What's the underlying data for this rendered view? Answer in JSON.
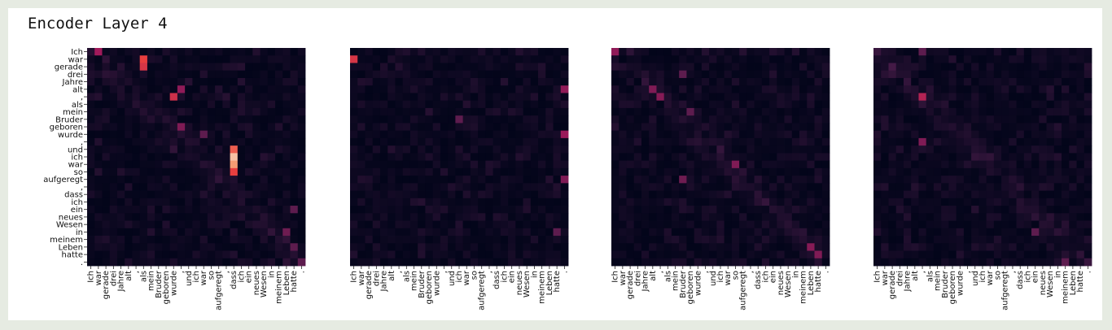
{
  "figure": {
    "title": "Encoder Layer 4",
    "colors": {
      "low": "#03051a",
      "mid1": "#4c1d4b",
      "mid2": "#a11a5b",
      "high1": "#e83f3f",
      "high2": "#f69c73",
      "max": "#faebdd",
      "frame_bg": "#e6ebe2"
    }
  },
  "chart_data": [
    {
      "type": "heatmap",
      "title": "",
      "xlabel": "",
      "ylabel": "",
      "row_labels": [
        "Ich",
        "war",
        "gerade",
        "drei",
        "Jahre",
        "alt",
        ",",
        "als",
        "mein",
        "Bruder",
        "geboren",
        "wurde",
        ",",
        "und",
        "ich",
        "war",
        "so",
        "aufgeregt",
        ",",
        "dass",
        "ich",
        "ein",
        "neues",
        "Wesen",
        "in",
        "meinem",
        "Leben",
        "hatte",
        "."
      ],
      "col_labels": [
        "Ich",
        "war",
        "gerade",
        "drei",
        "Jahre",
        "alt",
        ",",
        "als",
        "mein",
        "Bruder",
        "geboren",
        "wurde",
        ",",
        "und",
        "ich",
        "war",
        "so",
        "aufgeregt",
        ",",
        "dass",
        "ich",
        "ein",
        "neues",
        "Wesen",
        "in",
        "meinem",
        "Leben",
        "hatte",
        "."
      ],
      "value_range": [
        0,
        1
      ],
      "show_y_tick_labels": true,
      "highlights": [
        {
          "row": 0,
          "col": 1,
          "value": 0.5
        },
        {
          "row": 1,
          "col": 7,
          "value": 0.7
        },
        {
          "row": 2,
          "col": 7,
          "value": 0.65
        },
        {
          "row": 5,
          "col": 12,
          "value": 0.45
        },
        {
          "row": 6,
          "col": 11,
          "value": 0.62
        },
        {
          "row": 10,
          "col": 12,
          "value": 0.4
        },
        {
          "row": 11,
          "col": 15,
          "value": 0.3
        },
        {
          "row": 13,
          "col": 19,
          "value": 0.75
        },
        {
          "row": 14,
          "col": 19,
          "value": 0.92
        },
        {
          "row": 15,
          "col": 19,
          "value": 0.85
        },
        {
          "row": 16,
          "col": 19,
          "value": 0.7
        },
        {
          "row": 21,
          "col": 27,
          "value": 0.3
        },
        {
          "row": 24,
          "col": 26,
          "value": 0.35
        },
        {
          "row": 26,
          "col": 27,
          "value": 0.3
        },
        {
          "row": 28,
          "col": 28,
          "value": 0.3
        }
      ]
    },
    {
      "type": "heatmap",
      "title": "",
      "xlabel": "",
      "ylabel": "",
      "row_labels": [
        "Ich",
        "war",
        "gerade",
        "drei",
        "Jahre",
        "alt",
        ",",
        "als",
        "mein",
        "Bruder",
        "geboren",
        "wurde",
        ",",
        "und",
        "ich",
        "war",
        "so",
        "aufgeregt",
        ",",
        "dass",
        "ich",
        "ein",
        "neues",
        "Wesen",
        "in",
        "meinem",
        "Leben",
        "hatte",
        "."
      ],
      "col_labels": [
        "Ich",
        "war",
        "gerade",
        "drei",
        "Jahre",
        "alt",
        ",",
        "als",
        "mein",
        "Bruder",
        "geboren",
        "wurde",
        ",",
        "und",
        "ich",
        "war",
        "so",
        "aufgeregt",
        ",",
        "dass",
        "ich",
        "ein",
        "neues",
        "Wesen",
        "in",
        "meinem",
        "Leben",
        "hatte",
        "."
      ],
      "value_range": [
        0,
        1
      ],
      "show_y_tick_labels": false,
      "highlights": [
        {
          "row": 1,
          "col": 0,
          "value": 0.65
        },
        {
          "row": 5,
          "col": 28,
          "value": 0.45
        },
        {
          "row": 9,
          "col": 14,
          "value": 0.3
        },
        {
          "row": 11,
          "col": 28,
          "value": 0.48
        },
        {
          "row": 17,
          "col": 28,
          "value": 0.4
        },
        {
          "row": 24,
          "col": 27,
          "value": 0.3
        }
      ]
    },
    {
      "type": "heatmap",
      "title": "",
      "xlabel": "",
      "ylabel": "",
      "row_labels": [
        "Ich",
        "war",
        "gerade",
        "drei",
        "Jahre",
        "alt",
        ",",
        "als",
        "mein",
        "Bruder",
        "geboren",
        "wurde",
        ",",
        "und",
        "ich",
        "war",
        "so",
        "aufgeregt",
        ",",
        "dass",
        "ich",
        "ein",
        "neues",
        "Wesen",
        "in",
        "meinem",
        "Leben",
        "hatte",
        "."
      ],
      "col_labels": [
        "Ich",
        "war",
        "gerade",
        "drei",
        "Jahre",
        "alt",
        ",",
        "als",
        "mein",
        "Bruder",
        "geboren",
        "wurde",
        ",",
        "und",
        "ich",
        "war",
        "so",
        "aufgeregt",
        ",",
        "dass",
        "ich",
        "ein",
        "neues",
        "Wesen",
        "in",
        "meinem",
        "Leben",
        "hatte",
        "."
      ],
      "value_range": [
        0,
        1
      ],
      "show_y_tick_labels": false,
      "highlights": [
        {
          "row": 0,
          "col": 0,
          "value": 0.45
        },
        {
          "row": 3,
          "col": 9,
          "value": 0.3
        },
        {
          "row": 5,
          "col": 5,
          "value": 0.4
        },
        {
          "row": 6,
          "col": 6,
          "value": 0.42
        },
        {
          "row": 8,
          "col": 10,
          "value": 0.3
        },
        {
          "row": 15,
          "col": 16,
          "value": 0.4
        },
        {
          "row": 17,
          "col": 9,
          "value": 0.35
        },
        {
          "row": 26,
          "col": 26,
          "value": 0.42
        },
        {
          "row": 27,
          "col": 27,
          "value": 0.4
        }
      ]
    },
    {
      "type": "heatmap",
      "title": "",
      "xlabel": "",
      "ylabel": "",
      "row_labels": [
        "Ich",
        "war",
        "gerade",
        "drei",
        "Jahre",
        "alt",
        ",",
        "als",
        "mein",
        "Bruder",
        "geboren",
        "wurde",
        ",",
        "und",
        "ich",
        "war",
        "so",
        "aufgeregt",
        ",",
        "dass",
        "ich",
        "ein",
        "neues",
        "Wesen",
        "in",
        "meinem",
        "Leben",
        "hatte",
        "."
      ],
      "col_labels": [
        "Ich",
        "war",
        "gerade",
        "drei",
        "Jahre",
        "alt",
        ",",
        "als",
        "mein",
        "Bruder",
        "geboren",
        "wurde",
        ",",
        "und",
        "ich",
        "war",
        "so",
        "aufgeregt",
        ",",
        "dass",
        "ich",
        "ein",
        "neues",
        "Wesen",
        "in",
        "meinem",
        "Leben",
        "hatte",
        "."
      ],
      "value_range": [
        0,
        1
      ],
      "show_y_tick_labels": false,
      "highlights": [
        {
          "row": 6,
          "col": 6,
          "value": 0.55
        },
        {
          "row": 12,
          "col": 6,
          "value": 0.4
        },
        {
          "row": 0,
          "col": 6,
          "value": 0.3
        },
        {
          "row": 24,
          "col": 21,
          "value": 0.3
        },
        {
          "row": 28,
          "col": 25,
          "value": 0.3
        }
      ]
    }
  ]
}
